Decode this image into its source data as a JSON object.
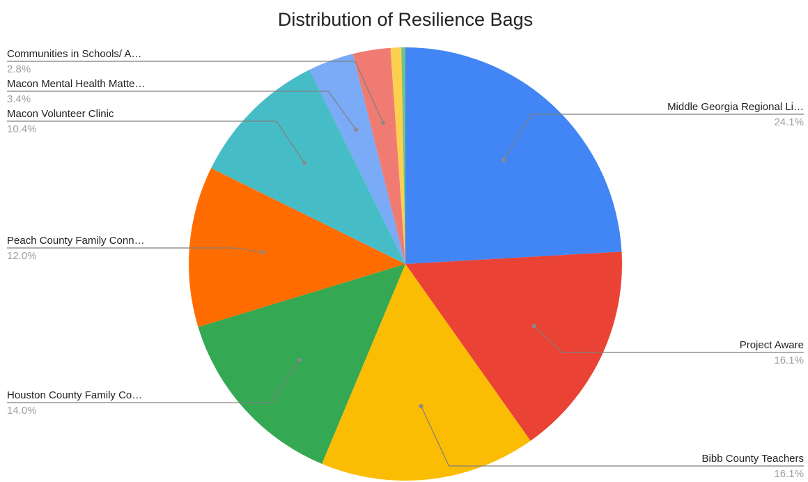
{
  "chart_data": {
    "type": "pie",
    "title": "Distribution of Resilience Bags",
    "slices": [
      {
        "label": "Middle Georgia Regional Li…",
        "value": 24.1,
        "value_label": "24.1%",
        "color": "#4285f4"
      },
      {
        "label": "Project Aware",
        "value": 16.1,
        "value_label": "16.1%",
        "color": "#ea4335"
      },
      {
        "label": "Bibb County Teachers",
        "value": 16.1,
        "value_label": "16.1%",
        "color": "#fbbc04"
      },
      {
        "label": "Houston County Family Co…",
        "value": 14.0,
        "value_label": "14.0%",
        "color": "#34a853"
      },
      {
        "label": "Peach County Family Conn…",
        "value": 12.0,
        "value_label": "12.0%",
        "color": "#ff6d01"
      },
      {
        "label": "Macon Volunteer Clinic",
        "value": 10.4,
        "value_label": "10.4%",
        "color": "#46bdc6"
      },
      {
        "label": "Macon Mental Health Matte…",
        "value": 3.4,
        "value_label": "3.4%",
        "color": "#7baaf7"
      },
      {
        "label": "Communities in Schools/ A…",
        "value": 2.8,
        "value_label": "2.8%",
        "color": "#f07b72"
      },
      {
        "label": "",
        "value": 0.8,
        "value_label": "",
        "color": "#fcd04f"
      },
      {
        "label": "",
        "value": 0.3,
        "value_label": "",
        "color": "#71c287"
      }
    ],
    "legend": "none",
    "start_angle_deg": 0,
    "direction": "clockwise"
  }
}
